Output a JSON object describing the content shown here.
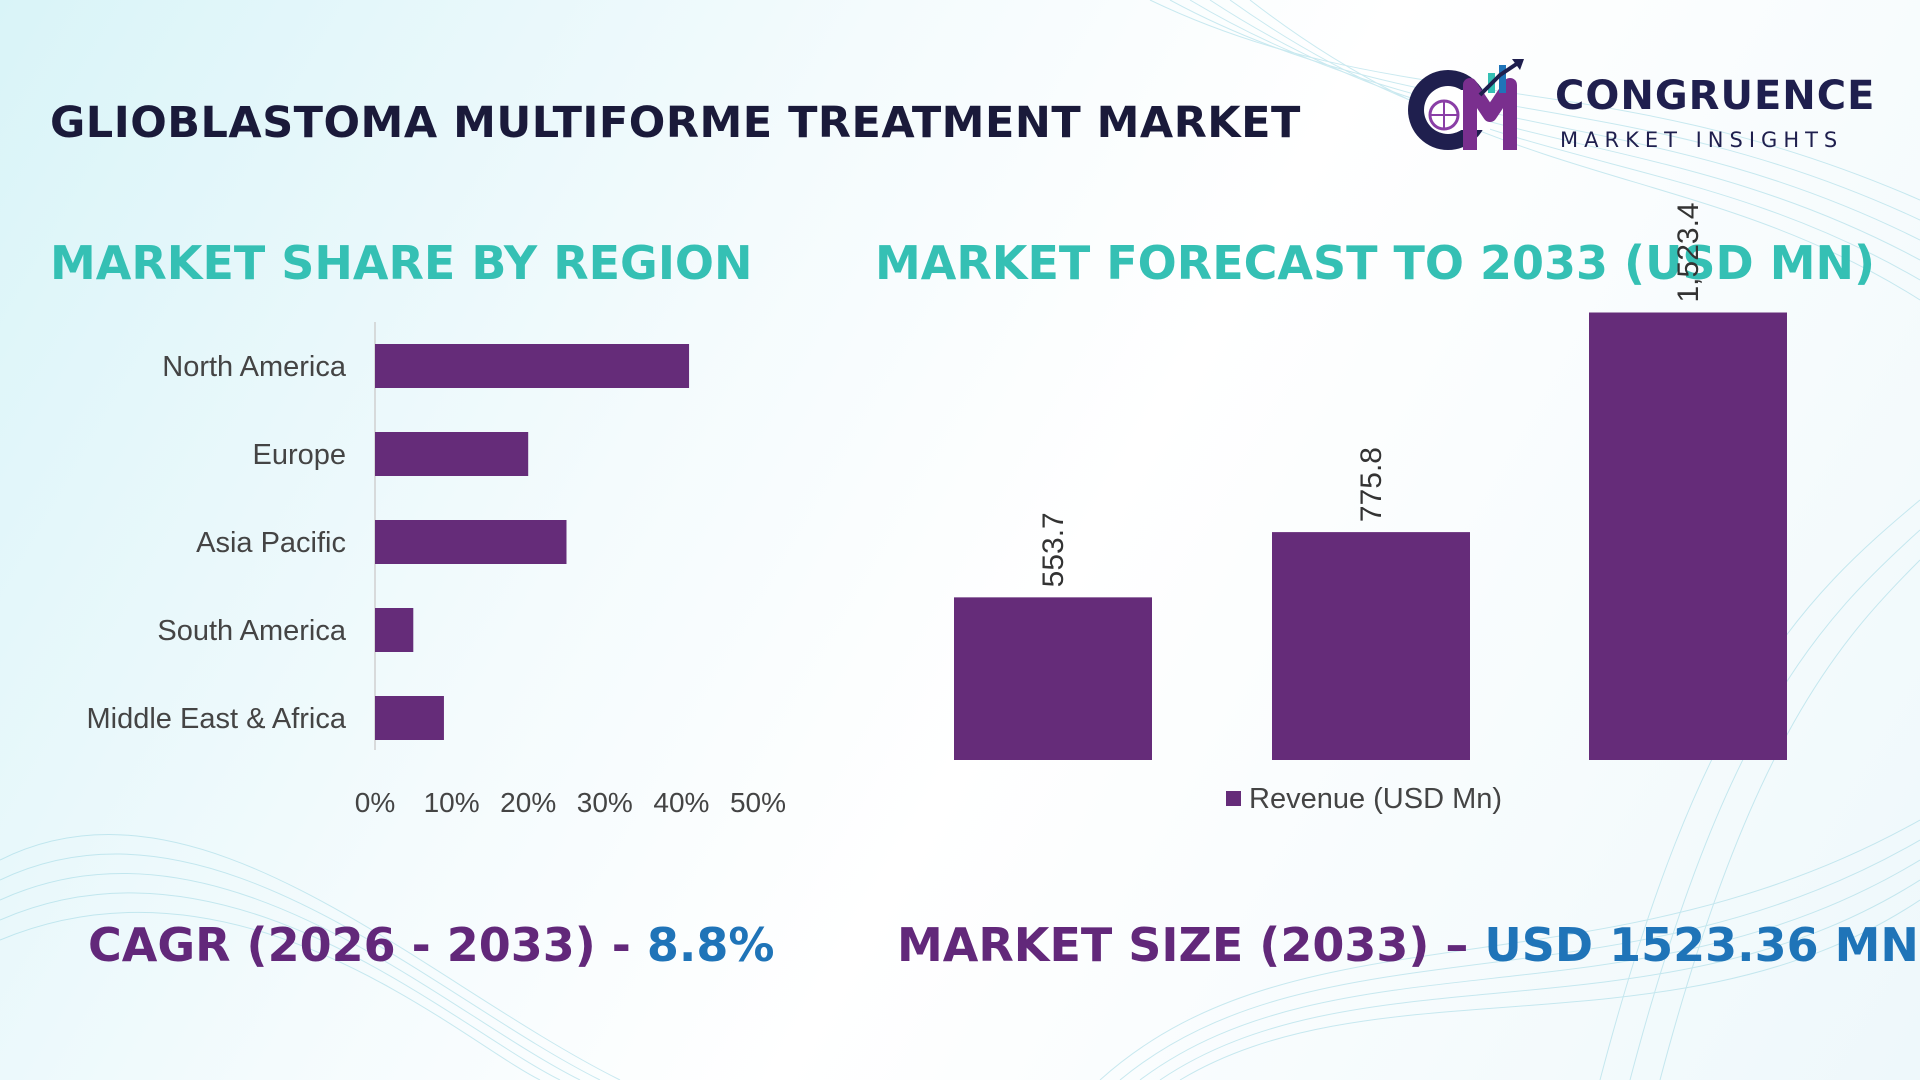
{
  "page": {
    "title": "GLIOBLASTOMA MULTIFORME TREATMENT MARKET",
    "left_section_title": "MARKET SHARE BY REGION",
    "right_section_title": "MARKET FORECAST TO 2033 (USD MN)"
  },
  "logo": {
    "name": "CONGRUENCE",
    "tagline": "MARKET INSIGHTS",
    "mark_letters": "CM"
  },
  "stats": {
    "cagr_label": "CAGR (2026 - 2033) -",
    "cagr_value": "8.8%",
    "market_size_label": "MARKET SIZE (2033) –",
    "market_size_value": "USD 1523.36 MN"
  },
  "colors": {
    "bar": "#652c79",
    "section_title": "#35c0b4",
    "title": "#1a1a3a",
    "stat_label": "#62287a",
    "stat_value": "#1f74b8"
  },
  "chart_data": [
    {
      "type": "bar",
      "orientation": "horizontal",
      "categories": [
        "North America",
        "Europe",
        "Asia Pacific",
        "South America",
        "Middle East & Africa"
      ],
      "values": [
        41,
        20,
        25,
        5,
        9
      ],
      "xlim": [
        0,
        50
      ],
      "tick_labels": [
        "0%",
        "10%",
        "20%",
        "30%",
        "40%",
        "50%"
      ],
      "grid": false
    },
    {
      "type": "bar",
      "orientation": "vertical",
      "categories": [
        "",
        "",
        ""
      ],
      "values": [
        553.7,
        775.8,
        1523.4
      ],
      "data_labels": [
        "553.7",
        "775.8",
        "1,523.4"
      ],
      "ylim": [
        0,
        1600
      ],
      "legend": "bottom",
      "series": [
        {
          "name": "Revenue (USD Mn)",
          "values": [
            553.7,
            775.8,
            1523.4
          ]
        }
      ]
    }
  ]
}
